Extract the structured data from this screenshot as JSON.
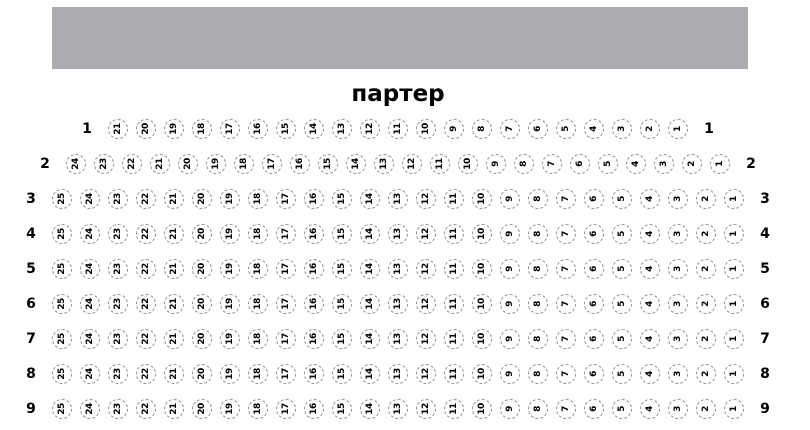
{
  "title": "партер",
  "stage": {
    "color": "#adabaf"
  },
  "seat_style": {
    "border_color": "#8f8f8f",
    "number_color": "#000000"
  },
  "rows": [
    {
      "label": "1",
      "seats": [
        21,
        20,
        19,
        18,
        17,
        16,
        15,
        14,
        13,
        12,
        11,
        10,
        9,
        8,
        7,
        6,
        5,
        4,
        3,
        2,
        1
      ]
    },
    {
      "label": "2",
      "seats": [
        24,
        23,
        22,
        21,
        20,
        19,
        18,
        17,
        16,
        15,
        14,
        13,
        12,
        11,
        10,
        9,
        8,
        7,
        6,
        5,
        4,
        3,
        2,
        1
      ]
    },
    {
      "label": "3",
      "seats": [
        25,
        24,
        23,
        22,
        21,
        20,
        19,
        18,
        17,
        16,
        15,
        14,
        13,
        12,
        11,
        10,
        9,
        8,
        7,
        6,
        5,
        4,
        3,
        2,
        1
      ]
    },
    {
      "label": "4",
      "seats": [
        25,
        24,
        23,
        22,
        21,
        20,
        19,
        18,
        17,
        16,
        15,
        14,
        13,
        12,
        11,
        10,
        9,
        8,
        7,
        6,
        5,
        4,
        3,
        2,
        1
      ]
    },
    {
      "label": "5",
      "seats": [
        25,
        24,
        23,
        22,
        21,
        20,
        19,
        18,
        17,
        16,
        15,
        14,
        13,
        12,
        11,
        10,
        9,
        8,
        7,
        6,
        5,
        4,
        3,
        2,
        1
      ]
    },
    {
      "label": "6",
      "seats": [
        25,
        24,
        23,
        22,
        21,
        20,
        19,
        18,
        17,
        16,
        15,
        14,
        13,
        12,
        11,
        10,
        9,
        8,
        7,
        6,
        5,
        4,
        3,
        2,
        1
      ]
    },
    {
      "label": "7",
      "seats": [
        25,
        24,
        23,
        22,
        21,
        20,
        19,
        18,
        17,
        16,
        15,
        14,
        13,
        12,
        11,
        10,
        9,
        8,
        7,
        6,
        5,
        4,
        3,
        2,
        1
      ]
    },
    {
      "label": "8",
      "seats": [
        25,
        24,
        23,
        22,
        21,
        20,
        19,
        18,
        17,
        16,
        15,
        14,
        13,
        12,
        11,
        10,
        9,
        8,
        7,
        6,
        5,
        4,
        3,
        2,
        1
      ]
    },
    {
      "label": "9",
      "seats": [
        25,
        24,
        23,
        22,
        21,
        20,
        19,
        18,
        17,
        16,
        15,
        14,
        13,
        12,
        11,
        10,
        9,
        8,
        7,
        6,
        5,
        4,
        3,
        2,
        1
      ]
    }
  ]
}
